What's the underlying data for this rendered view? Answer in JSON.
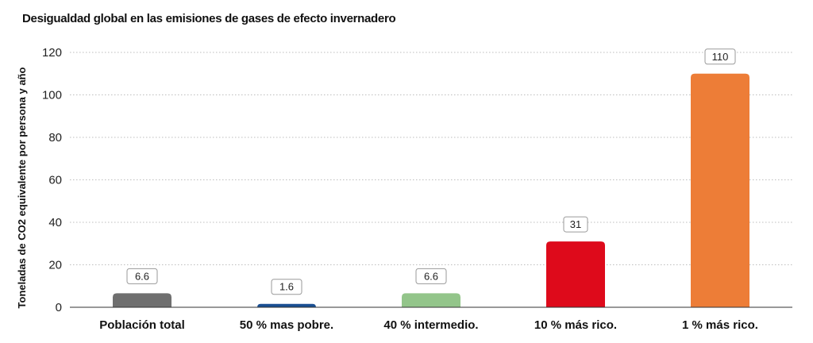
{
  "chart_data": {
    "type": "bar",
    "title": "Desigualdad global en las emisiones de gases de efecto invernadero",
    "xlabel": "",
    "ylabel": "Toneladas de CO2 equivalente por persona y año",
    "ylim": [
      0,
      120
    ],
    "yticks": [
      0,
      20,
      40,
      60,
      80,
      100,
      120
    ],
    "grid": true,
    "categories": [
      "Población total",
      "50 % mas pobre.",
      "40 % intermedio.",
      "10 % más rico.",
      "1 % más rico."
    ],
    "values": [
      6.6,
      1.6,
      6.6,
      31,
      110
    ],
    "value_labels": [
      "6.6",
      "1.6",
      "6.6",
      "31",
      "110"
    ],
    "colors": [
      "#6f6f6f",
      "#1a4f92",
      "#93c58a",
      "#de0a1b",
      "#ed7d37"
    ]
  }
}
